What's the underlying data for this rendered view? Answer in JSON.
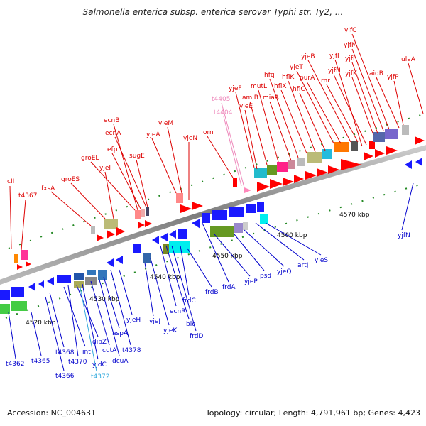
{
  "title": "Salmonella enterica subsp. enterica serovar Typhi str. Ty2, ...",
  "footer": {
    "accession": "Accession: NC_004631",
    "topology": "Topology: circular; Length: 4,791,961 bp; Genes: 4,423"
  },
  "colors": {
    "backbone": "#8c8c8c",
    "forward_label": "#dd0000",
    "reverse_label": "#0000cc",
    "pseudo_label": "#ee88bb",
    "cyan_label": "#33aadd",
    "tick": "#228822"
  },
  "ruler_labels": [
    {
      "text": "4520 kbp"
    },
    {
      "text": "4530 kbp"
    },
    {
      "text": "4540 kbp"
    },
    {
      "text": "4550 kbp"
    },
    {
      "text": "4560 kbp"
    },
    {
      "text": "4570 kbp"
    }
  ],
  "forward_genes": [
    {
      "name": "cII",
      "color": "red"
    },
    {
      "name": "t4367",
      "color": "red"
    },
    {
      "name": "fxsA",
      "color": "red"
    },
    {
      "name": "groES",
      "color": "red"
    },
    {
      "name": "groEL",
      "color": "red"
    },
    {
      "name": "yjeI",
      "color": "red"
    },
    {
      "name": "efp",
      "color": "red"
    },
    {
      "name": "ecnA",
      "color": "red"
    },
    {
      "name": "ecnB",
      "color": "red"
    },
    {
      "name": "sugE",
      "color": "red"
    },
    {
      "name": "yjeA",
      "color": "red"
    },
    {
      "name": "yjeM",
      "color": "red"
    },
    {
      "name": "yjeN",
      "color": "red"
    },
    {
      "name": "orn",
      "color": "red"
    },
    {
      "name": "t4405",
      "color": "pink"
    },
    {
      "name": "t4404",
      "color": "pink"
    },
    {
      "name": "yjeF",
      "color": "red"
    },
    {
      "name": "yjeE",
      "color": "red"
    },
    {
      "name": "amiB",
      "color": "red"
    },
    {
      "name": "mutL",
      "color": "red"
    },
    {
      "name": "miaA",
      "color": "red"
    },
    {
      "name": "hfq",
      "color": "red"
    },
    {
      "name": "hflX",
      "color": "red"
    },
    {
      "name": "hflK",
      "color": "red"
    },
    {
      "name": "hflC",
      "color": "red"
    },
    {
      "name": "yjeT",
      "color": "red"
    },
    {
      "name": "purA",
      "color": "red"
    },
    {
      "name": "yjeB",
      "color": "red"
    },
    {
      "name": "rnr",
      "color": "red"
    },
    {
      "name": "yjfI",
      "color": "red"
    },
    {
      "name": "yjfH",
      "color": "red"
    },
    {
      "name": "yjfK",
      "color": "red"
    },
    {
      "name": "yjfL",
      "color": "red"
    },
    {
      "name": "yjfM",
      "color": "red"
    },
    {
      "name": "yjfC",
      "color": "red"
    },
    {
      "name": "aidB",
      "color": "red"
    },
    {
      "name": "yjfP",
      "color": "red"
    },
    {
      "name": "ulaA",
      "color": "red"
    }
  ],
  "reverse_genes": [
    {
      "name": "t4362",
      "color": "blue"
    },
    {
      "name": "t4365",
      "color": "blue"
    },
    {
      "name": "t4366",
      "color": "blue"
    },
    {
      "name": "t4368",
      "color": "blue"
    },
    {
      "name": "int",
      "color": "blue"
    },
    {
      "name": "t4370",
      "color": "blue"
    },
    {
      "name": "dipZ",
      "color": "blue"
    },
    {
      "name": "yjdC",
      "color": "blue"
    },
    {
      "name": "t4372",
      "color": "cyan"
    },
    {
      "name": "cutA",
      "color": "blue"
    },
    {
      "name": "dcuA",
      "color": "blue"
    },
    {
      "name": "aspA",
      "color": "blue"
    },
    {
      "name": "t4378",
      "color": "blue"
    },
    {
      "name": "yjeH",
      "color": "blue"
    },
    {
      "name": "yjeJ",
      "color": "blue"
    },
    {
      "name": "yjeK",
      "color": "blue"
    },
    {
      "name": "ecnR",
      "color": "blue"
    },
    {
      "name": "blc",
      "color": "blue"
    },
    {
      "name": "frdD",
      "color": "blue"
    },
    {
      "name": "frdC",
      "color": "blue"
    },
    {
      "name": "frdB",
      "color": "blue"
    },
    {
      "name": "frdA",
      "color": "blue"
    },
    {
      "name": "yjeP",
      "color": "blue"
    },
    {
      "name": "psd",
      "color": "blue"
    },
    {
      "name": "yjeQ",
      "color": "blue"
    },
    {
      "name": "artJ",
      "color": "blue"
    },
    {
      "name": "yjeS",
      "color": "blue"
    },
    {
      "name": "yjfN",
      "color": "blue"
    }
  ]
}
